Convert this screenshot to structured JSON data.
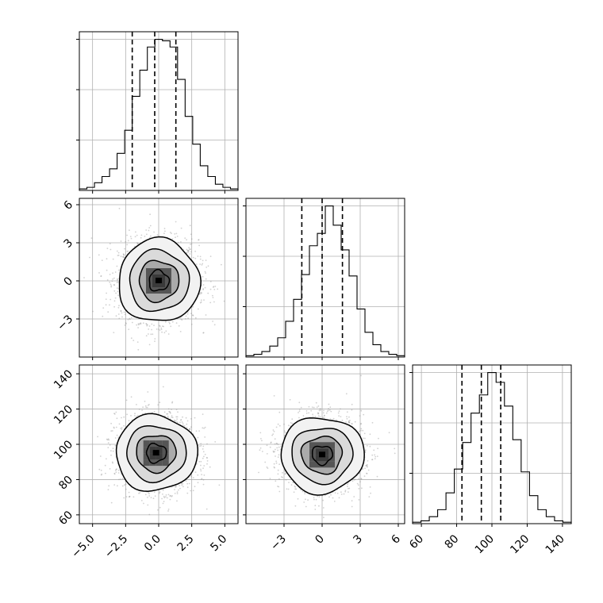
{
  "chart_data": {
    "type": "corner",
    "title": "",
    "grid": true,
    "variables": [
      {
        "label": "",
        "range": [
          -6.0,
          6.0
        ],
        "ticks": [
          -5.0,
          -2.5,
          0.0,
          2.5,
          5.0
        ],
        "tick_labels": [
          "−5.0",
          "−2.5",
          "0.0",
          "2.5",
          "5.0"
        ],
        "quantiles": [
          -2.0,
          -0.3,
          1.3
        ],
        "histogram": [
          1,
          2,
          5,
          9,
          14,
          24,
          39,
          61,
          78,
          93,
          98,
          97,
          93,
          72,
          48,
          30,
          16,
          9,
          4,
          2,
          1
        ]
      },
      {
        "label": "",
        "range": [
          -6.0,
          6.5
        ],
        "ticks": [
          -3,
          0,
          3,
          6
        ],
        "tick_labels": [
          "−3",
          "0",
          "3",
          "6"
        ],
        "quantiles": [
          -1.6,
          0.0,
          1.6
        ],
        "histogram": [
          1,
          2,
          4,
          8,
          14,
          26,
          42,
          60,
          81,
          90,
          110,
          96,
          78,
          59,
          35,
          18,
          9,
          4,
          2,
          1
        ]
      },
      {
        "label": "",
        "range": [
          55,
          145
        ],
        "ticks": [
          60,
          80,
          100,
          120,
          140
        ],
        "tick_labels": [
          "60",
          "80",
          "100",
          "120",
          "140"
        ],
        "quantiles": [
          83,
          94,
          105
        ],
        "histogram": [
          1,
          2,
          5,
          10,
          22,
          39,
          58,
          79,
          92,
          108,
          101,
          84,
          60,
          37,
          20,
          10,
          5,
          2,
          1
        ]
      }
    ],
    "joint": [
      {
        "x_var": 0,
        "y_var": 1,
        "center": [
          0.0,
          0.0
        ],
        "sigma": [
          1.5,
          1.6
        ],
        "corr": 0.0
      },
      {
        "x_var": 0,
        "y_var": 2,
        "center": [
          -0.2,
          95.0
        ],
        "sigma": [
          1.5,
          10.5
        ],
        "corr": 0.0
      },
      {
        "x_var": 1,
        "y_var": 2,
        "center": [
          0.0,
          94.0
        ],
        "sigma": [
          1.6,
          10.5
        ],
        "corr": 0.0
      }
    ]
  }
}
